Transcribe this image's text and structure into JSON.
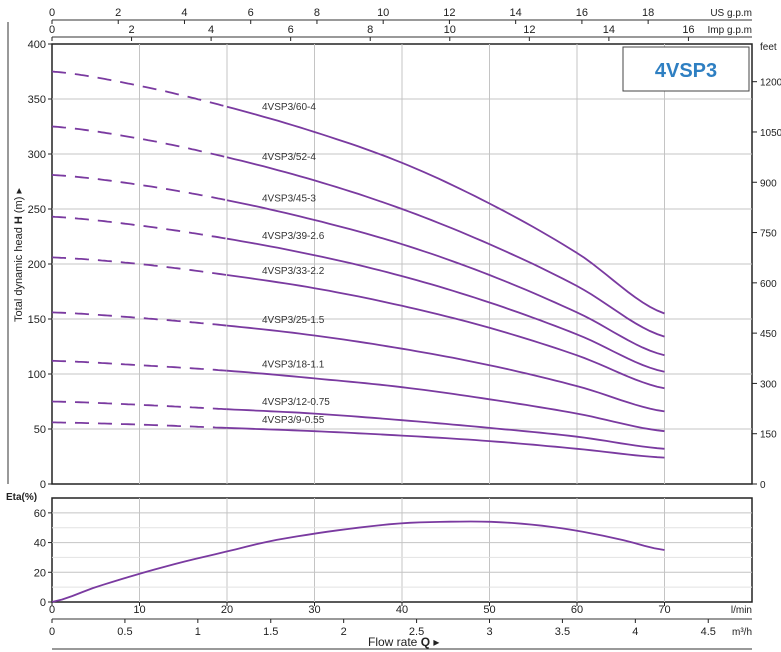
{
  "title_box": "4VSP3",
  "top_axes": {
    "us": {
      "unit": "US g.p.m",
      "ticks": [
        0,
        2,
        4,
        6,
        8,
        10,
        12,
        14,
        16,
        18
      ],
      "max_lpm": 70,
      "lpm_per_unit": 3.785
    },
    "imp": {
      "unit": "Imp g.p.m",
      "ticks": [
        0,
        2,
        4,
        6,
        8,
        10,
        12,
        14,
        16
      ],
      "lpm_per_unit": 4.546
    }
  },
  "head_chart": {
    "ylabel_prefix": "Total dynamic head",
    "ylabel_symbol": "H",
    "ylabel_unit": "(m)",
    "y_ticks": [
      0,
      50,
      100,
      150,
      200,
      250,
      300,
      350,
      400
    ],
    "ylim": [
      0,
      400
    ],
    "right_axis": {
      "unit": "feet",
      "ticks": [
        0,
        150,
        300,
        450,
        600,
        750,
        900,
        1050,
        1200
      ],
      "ft_per_m": 3.281
    }
  },
  "eta_chart": {
    "ylabel": "Eta(%)",
    "y_ticks": [
      0,
      20,
      40,
      60
    ],
    "ylim": [
      0,
      70
    ]
  },
  "x_axes": {
    "lpm": {
      "unit": "l/min",
      "ticks": [
        0,
        10,
        20,
        30,
        40,
        50,
        60,
        70
      ],
      "xlim": [
        0,
        80
      ]
    },
    "m3h": {
      "unit": "m³/h",
      "ticks": [
        0,
        0.5,
        1,
        1.5,
        2,
        2.5,
        3,
        3.5,
        4,
        4.5
      ]
    },
    "label": "Flow rate",
    "symbol": "Q"
  },
  "chart_data": [
    {
      "type": "line",
      "title": "4VSP3",
      "xlabel": "Flow rate Q (l/min)",
      "ylabel": "Total dynamic head H (m)",
      "xlim": [
        0,
        80
      ],
      "ylim": [
        0,
        400
      ],
      "grid": true,
      "series": [
        {
          "name": "4VSP3/60-4",
          "dashed_until": 20,
          "x": [
            0,
            10,
            20,
            30,
            40,
            50,
            60,
            70
          ],
          "y": [
            375,
            362,
            343,
            320,
            292,
            255,
            210,
            155
          ]
        },
        {
          "name": "4VSP3/52-4",
          "dashed_until": 20,
          "x": [
            0,
            10,
            20,
            30,
            40,
            50,
            60,
            70
          ],
          "y": [
            325,
            314,
            297,
            276,
            250,
            218,
            180,
            134
          ]
        },
        {
          "name": "4VSP3/45-3",
          "dashed_until": 20,
          "x": [
            0,
            10,
            20,
            30,
            40,
            50,
            60,
            70
          ],
          "y": [
            281,
            272,
            258,
            240,
            218,
            190,
            156,
            117
          ]
        },
        {
          "name": "4VSP3/39-2.6",
          "dashed_until": 20,
          "x": [
            0,
            10,
            20,
            30,
            40,
            50,
            60,
            70
          ],
          "y": [
            243,
            235,
            223,
            208,
            189,
            165,
            136,
            102
          ]
        },
        {
          "name": "4VSP3/33-2.2",
          "dashed_until": 20,
          "x": [
            0,
            10,
            20,
            30,
            40,
            50,
            60,
            70
          ],
          "y": [
            206,
            200,
            190,
            178,
            162,
            142,
            117,
            87
          ]
        },
        {
          "name": "4VSP3/25-1.5",
          "dashed_until": 20,
          "x": [
            0,
            10,
            20,
            30,
            40,
            50,
            60,
            70
          ],
          "y": [
            156,
            151,
            144,
            135,
            123,
            108,
            89,
            66
          ]
        },
        {
          "name": "4VSP3/18-1.1",
          "dashed_until": 20,
          "x": [
            0,
            10,
            20,
            30,
            40,
            50,
            60,
            70
          ],
          "y": [
            112,
            108,
            103,
            96,
            88,
            77,
            64,
            48
          ]
        },
        {
          "name": "4VSP3/12-0.75",
          "dashed_until": 20,
          "x": [
            0,
            10,
            20,
            30,
            40,
            50,
            60,
            70
          ],
          "y": [
            75,
            72,
            68,
            64,
            58,
            51,
            43,
            32
          ]
        },
        {
          "name": "4VSP3/9-0.55",
          "dashed_until": 20,
          "x": [
            0,
            10,
            20,
            30,
            40,
            50,
            60,
            70
          ],
          "y": [
            56,
            54,
            51,
            48,
            44,
            39,
            32,
            24
          ]
        }
      ]
    },
    {
      "type": "line",
      "ylabel": "Eta(%)",
      "xlabel": "Flow rate Q (l/min)",
      "xlim": [
        0,
        80
      ],
      "ylim": [
        0,
        70
      ],
      "grid": true,
      "series": [
        {
          "x": [
            0,
            5,
            10,
            15,
            20,
            25,
            30,
            35,
            40,
            45,
            50,
            55,
            60,
            65,
            70
          ],
          "y": [
            0,
            10,
            19,
            27,
            34,
            41,
            46,
            50,
            53,
            54,
            54,
            52,
            48,
            42,
            35
          ]
        }
      ]
    }
  ],
  "colors": {
    "curve": "#7a3aa0",
    "grid": "#c4c4c4",
    "axis": "#222222",
    "title": "#2e7fc2"
  }
}
